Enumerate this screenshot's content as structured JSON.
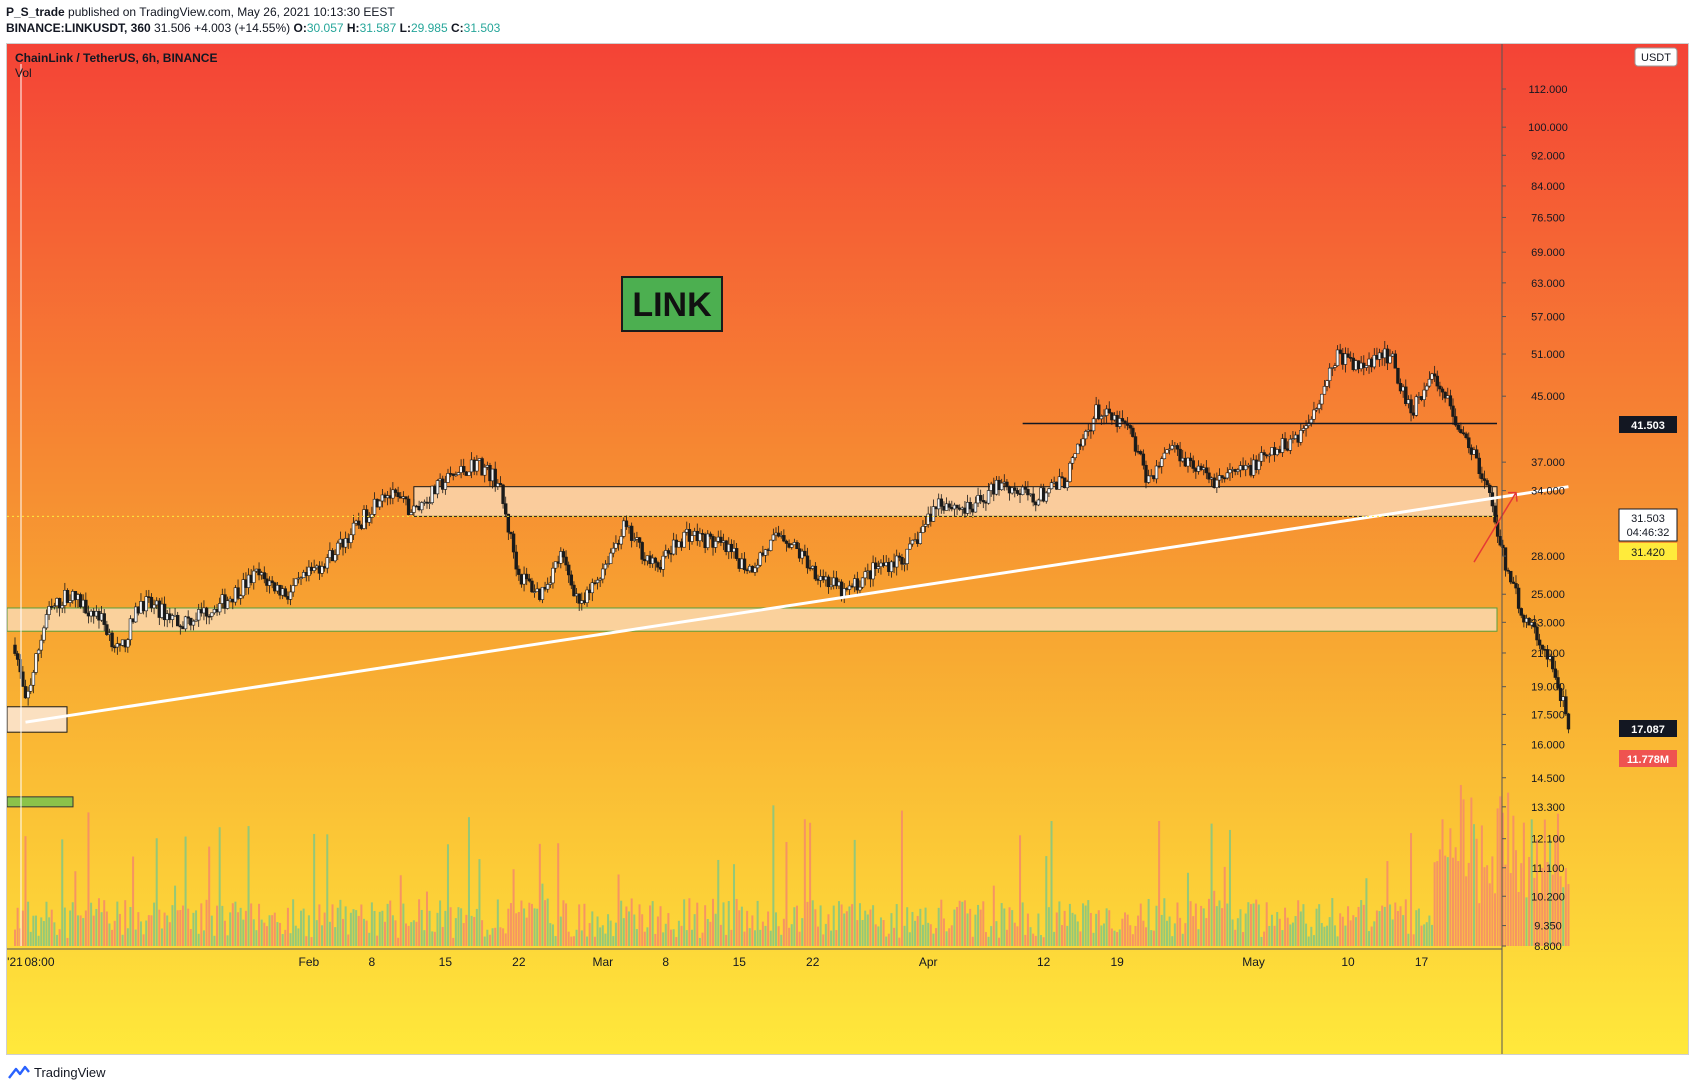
{
  "header": {
    "author": "P_S_trade",
    "published": "published on TradingView.com, May 26, 2021 10:13:30 EEST",
    "symbol": "BINANCE:LINKUSDT, 360",
    "last": "31.506",
    "change": "+4.003 (+14.55%)",
    "o_label": "O:",
    "o": "30.057",
    "h_label": "H:",
    "h": "31.587",
    "l_label": "L:",
    "l": "29.985",
    "c_label": "C:",
    "c": "31.503"
  },
  "legend": {
    "title": "ChainLink / TetherUS, 6h, BINANCE",
    "vol": "Vol"
  },
  "badge": {
    "currency": "USDT"
  },
  "annotation": {
    "link": "LINK"
  },
  "footer": {
    "brand": "TradingView"
  },
  "price_labels": {
    "level_top": "41.503",
    "current": "31.503",
    "countdown": "04:46:32",
    "yellow": "31.420",
    "level_low": "17.087",
    "volume": "11.778M"
  },
  "colors": {
    "bg_top": "#f44336",
    "bg_mid": "#f7a131",
    "bg_bottom": "#ffe93b",
    "zone_fill": "#fbe0c0",
    "link_box": "#4caf50",
    "vol_up": "#81c784",
    "vol_down": "#f48a6a"
  },
  "chart_data": {
    "type": "candlestick",
    "title": "ChainLink / TetherUS, 6h, BINANCE",
    "scale": "log",
    "ylim": [
      8.8,
      125
    ],
    "y_ticks": [
      "112.000",
      "100.000",
      "92.000",
      "84.000",
      "76.500",
      "69.000",
      "63.000",
      "57.000",
      "51.000",
      "45.000",
      "37.000",
      "34.000",
      "28.000",
      "25.000",
      "23.000",
      "21.000",
      "19.000",
      "17.500",
      "16.000",
      "14.500",
      "13.300",
      "12.100",
      "11.100",
      "10.200",
      "9.350",
      "8.800"
    ],
    "x_ticks": [
      "'21",
      "08:00",
      "Feb",
      "8",
      "15",
      "22",
      "Mar",
      "8",
      "15",
      "22",
      "Apr",
      "12",
      "19",
      "May",
      "10",
      "17"
    ],
    "x_tick_days": [
      0,
      1,
      28,
      34,
      41,
      48,
      56,
      62,
      69,
      76,
      87,
      98,
      105,
      118,
      127,
      134
    ],
    "days_span": 141,
    "anchors": [
      [
        0,
        21.5
      ],
      [
        1,
        18.0
      ],
      [
        3,
        23.5
      ],
      [
        5,
        25.0
      ],
      [
        8,
        23.5
      ],
      [
        10,
        21.0
      ],
      [
        12,
        24.5
      ],
      [
        16,
        23.0
      ],
      [
        20,
        24.5
      ],
      [
        23,
        26.5
      ],
      [
        26,
        25.0
      ],
      [
        30,
        28.0
      ],
      [
        33,
        31.0
      ],
      [
        35,
        34.0
      ],
      [
        38,
        32.0
      ],
      [
        41,
        35.0
      ],
      [
        44,
        37.0
      ],
      [
        46,
        35.0
      ],
      [
        48,
        26.5
      ],
      [
        50,
        25.0
      ],
      [
        52,
        28.0
      ],
      [
        54,
        24.0
      ],
      [
        58,
        30.5
      ],
      [
        61,
        27.0
      ],
      [
        64,
        30.0
      ],
      [
        67,
        29.0
      ],
      [
        70,
        27.0
      ],
      [
        73,
        30.0
      ],
      [
        76,
        27.0
      ],
      [
        79,
        25.0
      ],
      [
        82,
        27.0
      ],
      [
        85,
        28.0
      ],
      [
        88,
        33.0
      ],
      [
        91,
        32.0
      ],
      [
        94,
        35.0
      ],
      [
        97,
        33.0
      ],
      [
        100,
        35.0
      ],
      [
        103,
        43.0
      ],
      [
        106,
        41.0
      ],
      [
        108,
        35.0
      ],
      [
        110,
        39.0
      ],
      [
        112,
        37.0
      ],
      [
        114,
        35.0
      ],
      [
        117,
        36.0
      ],
      [
        120,
        38.0
      ],
      [
        123,
        41.0
      ],
      [
        126,
        51.0
      ],
      [
        128,
        49.0
      ],
      [
        131,
        51.0
      ],
      [
        133,
        43.0
      ],
      [
        135,
        48.0
      ],
      [
        137,
        43.0
      ],
      [
        139,
        38.0
      ],
      [
        141,
        31.5
      ],
      [
        142,
        27.0
      ],
      [
        144,
        23.0
      ],
      [
        146,
        21.0
      ],
      [
        148,
        17.1
      ]
    ],
    "levels": [
      {
        "label": "41.503",
        "value": 41.503,
        "kind": "resistance"
      },
      {
        "label": "31.503",
        "value": 31.503,
        "kind": "last-price"
      },
      {
        "label": "17.087",
        "value": 17.087,
        "kind": "support"
      }
    ],
    "zones": [
      {
        "from": 31.5,
        "to": 34.4
      },
      {
        "from": 22.4,
        "to": 24.0
      }
    ],
    "trendline": [
      [
        1,
        17.1
      ],
      [
        148,
        34.4
      ]
    ]
  }
}
